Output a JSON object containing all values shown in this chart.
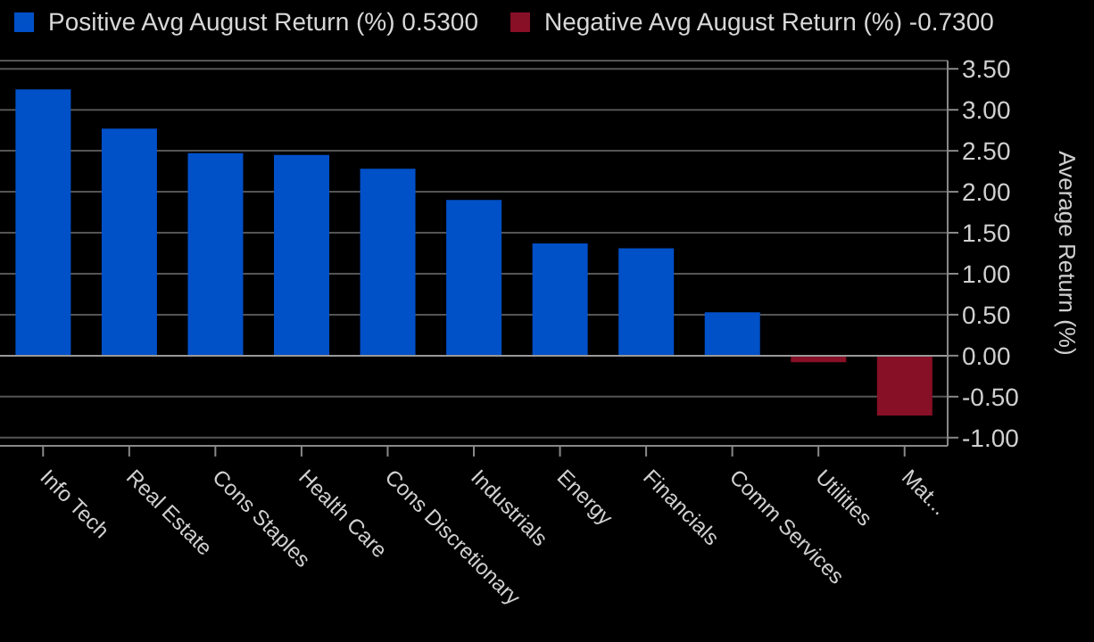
{
  "chart_data": {
    "type": "bar",
    "stacked": true,
    "ylabel": "Average Return (%)",
    "legend": "top left",
    "grid": "y",
    "categories": [
      "Info Tech",
      "Real Estate",
      "Cons Staples",
      "Health Care",
      "Cons Discretionary",
      "Industrials",
      "Energy",
      "Financials",
      "Comm Services",
      "Utilities",
      "Mat..."
    ],
    "series": [
      {
        "name": "Positive Avg August Return (%) 0.5300",
        "color": "#0050c8",
        "values": [
          3.25,
          2.77,
          2.47,
          2.45,
          2.28,
          1.9,
          1.37,
          1.31,
          0.53,
          null,
          null
        ]
      },
      {
        "name": "Negative Avg August Return (%) -0.7300",
        "color": "#870f26",
        "values": [
          null,
          null,
          null,
          null,
          null,
          null,
          null,
          null,
          null,
          -0.08,
          -0.73
        ]
      }
    ],
    "ylim": [
      -1.1,
      3.6
    ],
    "yticks": [
      {
        "value": -1,
        "label": "-1.00"
      },
      {
        "value": -0.5,
        "label": "-0.50"
      },
      {
        "value": 0,
        "label": "0.00"
      },
      {
        "value": 0.5,
        "label": "0.50"
      },
      {
        "value": 1,
        "label": "1.00"
      },
      {
        "value": 1.5,
        "label": "1.50"
      },
      {
        "value": 2,
        "label": "2.00"
      },
      {
        "value": 2.5,
        "label": "2.50"
      },
      {
        "value": 3,
        "label": "3.00"
      },
      {
        "value": 3.5,
        "label": "3.50"
      }
    ]
  }
}
